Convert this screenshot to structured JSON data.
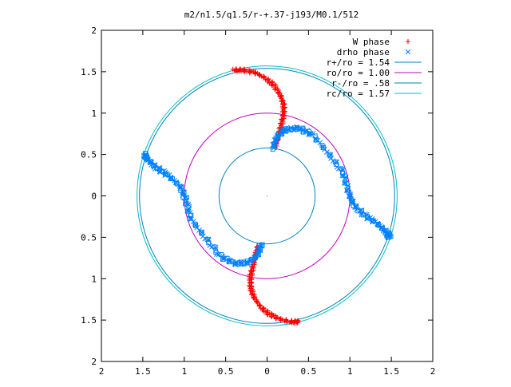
{
  "chart_data": {
    "type": "scatter",
    "title": "m2/n1.5/q1.5/r-+.37-j193/M0.1/512",
    "xlabel": "",
    "ylabel": "",
    "xlim": [
      -2,
      2
    ],
    "ylim": [
      -2,
      2
    ],
    "grid": false,
    "legend_position": "top-right",
    "x_tick_labels": [
      "2",
      "1.5",
      "1",
      "0.5",
      "0",
      "0.5",
      "1",
      "1.5",
      "2"
    ],
    "x_tick_values": [
      -2,
      -1.5,
      -1,
      -0.5,
      0,
      0.5,
      1,
      1.5,
      2
    ],
    "y_tick_labels": [
      "2",
      "1.5",
      "1",
      "0.5",
      "0",
      "0.5",
      "1",
      "1.5",
      "2"
    ],
    "y_tick_values": [
      2,
      1.5,
      1,
      0.5,
      0,
      -0.5,
      -1,
      -1.5,
      -2
    ],
    "colors": {
      "w_phase": "#ff0000",
      "drho_phase": "#0080ff",
      "r_plus": "#0080c0",
      "r_o": "#c000c0",
      "r_minus": "#0080c0",
      "r_c": "#00c0c0"
    },
    "circles": [
      {
        "name": "r+/ro = 1.54",
        "radius": 1.54,
        "color": "#0080c0"
      },
      {
        "name": "ro/ro = 1.00",
        "radius": 1.0,
        "color": "#c000c0"
      },
      {
        "name": "r-/ro = .58",
        "radius": 0.58,
        "color": "#0080c0"
      },
      {
        "name": "rc/ro = 1.57",
        "radius": 1.57,
        "color": "#00c0c0"
      }
    ],
    "series": [
      {
        "name": "W phase",
        "marker": "plus",
        "arms": [
          [
            [
              0.1,
              0.6
            ],
            [
              0.14,
              0.72
            ],
            [
              0.17,
              0.85
            ],
            [
              0.2,
              0.98
            ],
            [
              0.2,
              1.1
            ],
            [
              0.16,
              1.22
            ],
            [
              0.08,
              1.34
            ],
            [
              -0.03,
              1.43
            ],
            [
              -0.15,
              1.49
            ],
            [
              -0.3,
              1.52
            ],
            [
              -0.4,
              1.52
            ]
          ],
          [
            [
              -0.1,
              -0.6
            ],
            [
              -0.14,
              -0.72
            ],
            [
              -0.17,
              -0.85
            ],
            [
              -0.2,
              -0.98
            ],
            [
              -0.2,
              -1.1
            ],
            [
              -0.16,
              -1.22
            ],
            [
              -0.08,
              -1.34
            ],
            [
              0.03,
              -1.43
            ],
            [
              0.15,
              -1.49
            ],
            [
              0.3,
              -1.52
            ],
            [
              0.38,
              -1.52
            ]
          ]
        ]
      },
      {
        "name": "drho phase",
        "marker": "cross",
        "arms": [
          [
            [
              0.07,
              0.58
            ],
            [
              0.12,
              0.72
            ],
            [
              0.22,
              0.8
            ],
            [
              0.38,
              0.82
            ],
            [
              0.55,
              0.74
            ],
            [
              0.75,
              0.5
            ],
            [
              0.92,
              0.28
            ],
            [
              0.98,
              0.05
            ],
            [
              1.05,
              -0.12
            ],
            [
              1.2,
              -0.25
            ],
            [
              1.35,
              -0.35
            ],
            [
              1.45,
              -0.45
            ],
            [
              1.48,
              -0.5
            ]
          ],
          [
            [
              -0.07,
              -0.58
            ],
            [
              -0.12,
              -0.72
            ],
            [
              -0.22,
              -0.8
            ],
            [
              -0.38,
              -0.82
            ],
            [
              -0.55,
              -0.74
            ],
            [
              -0.75,
              -0.5
            ],
            [
              -0.92,
              -0.28
            ],
            [
              -0.98,
              -0.05
            ],
            [
              -1.05,
              0.12
            ],
            [
              -1.2,
              0.25
            ],
            [
              -1.35,
              0.35
            ],
            [
              -1.45,
              0.45
            ],
            [
              -1.48,
              0.5
            ]
          ]
        ]
      }
    ]
  }
}
